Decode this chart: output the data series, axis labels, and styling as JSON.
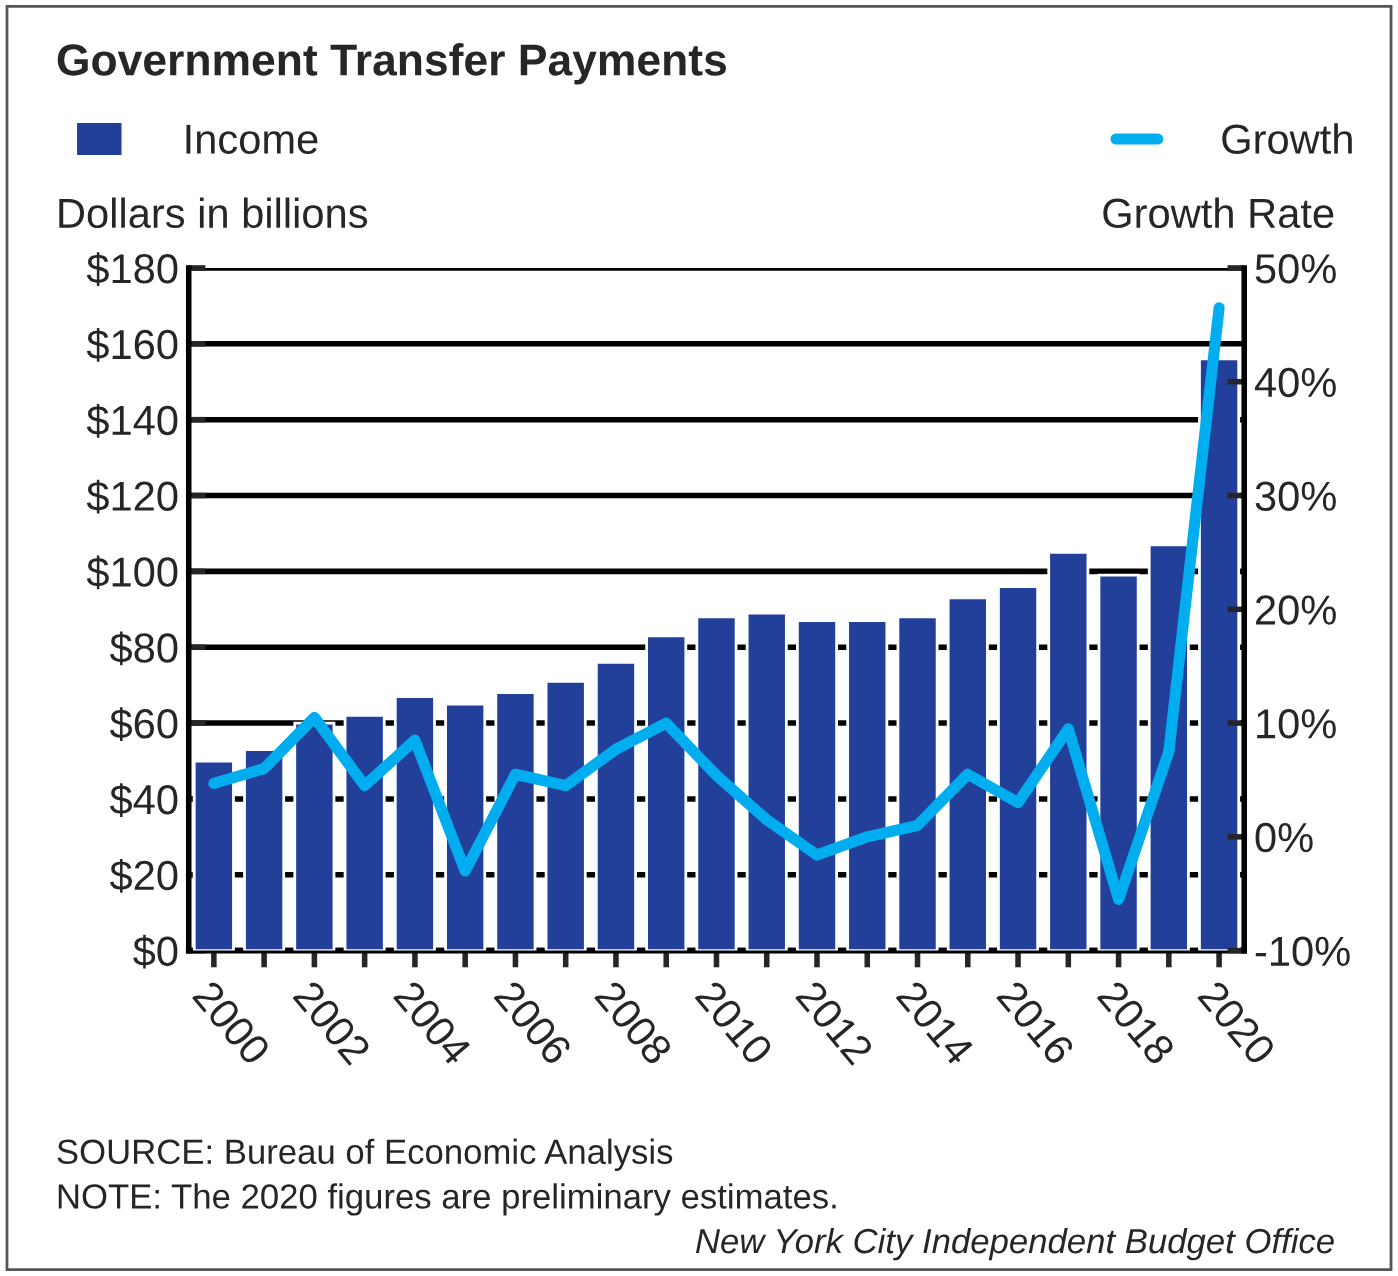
{
  "chart_data": {
    "type": "bar",
    "title": "Government Transfer Payments",
    "categories": [
      "2000",
      null,
      "2002",
      null,
      "2004",
      null,
      "2006",
      null,
      "2008",
      null,
      "2010",
      null,
      "2012",
      null,
      "2014",
      null,
      "2016",
      null,
      "2018",
      null,
      "2020"
    ],
    "series": [
      {
        "name": "Income",
        "color": "#22409a",
        "values": [
          50,
          53,
          60,
          62,
          67,
          65,
          68,
          71,
          76,
          83,
          88,
          89,
          87,
          87,
          88,
          93,
          96,
          105,
          99,
          107,
          156
        ]
      },
      {
        "name": "Growth",
        "type": "line",
        "axis": "y2",
        "color": "#00aeef",
        "values": [
          4.7,
          6,
          10.5,
          4.5,
          8.5,
          -3,
          5.5,
          4.5,
          7.7,
          10,
          5.4,
          1.5,
          -1.6,
          0,
          1,
          5.5,
          3,
          9.5,
          -5.5,
          7.5,
          46.5
        ]
      }
    ],
    "ylabel": "Dollars in billions",
    "y2label": "Growth Rate",
    "ylim": [
      0,
      180
    ],
    "yticks": [
      {
        "value": 0,
        "label": "$0"
      },
      {
        "value": 20,
        "label": "$20"
      },
      {
        "value": 40,
        "label": "$40"
      },
      {
        "value": 60,
        "label": "$60"
      },
      {
        "value": 80,
        "label": "$80"
      },
      {
        "value": 100,
        "label": "$100"
      },
      {
        "value": 120,
        "label": "$120"
      },
      {
        "value": 140,
        "label": "$140"
      },
      {
        "value": 160,
        "label": "$160"
      },
      {
        "value": 180,
        "label": "$180"
      }
    ],
    "y2lim": [
      -10,
      50
    ],
    "y2ticks": [
      {
        "value": -10,
        "label": "-10%"
      },
      {
        "value": 0,
        "label": "0%"
      },
      {
        "value": 10,
        "label": "10%"
      },
      {
        "value": 20,
        "label": "20%"
      },
      {
        "value": 30,
        "label": "30%"
      },
      {
        "value": 40,
        "label": "40%"
      },
      {
        "value": 50,
        "label": "50%"
      }
    ],
    "grid": "y",
    "legend": "top",
    "marker": "none",
    "line_style": "solid",
    "annotations": [
      "SOURCE: Bureau of Economic Analysis",
      "NOTE: The 2020 figures are preliminary estimates.",
      "New York City Independent Budget Office"
    ]
  }
}
